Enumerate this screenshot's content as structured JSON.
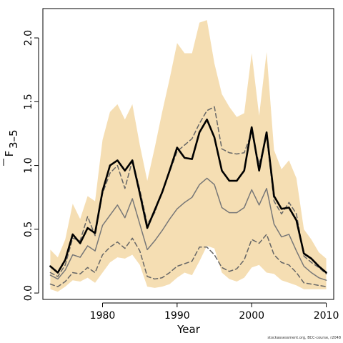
{
  "chart_data": {
    "type": "line",
    "xlabel": "Year",
    "ylabel_main": "F",
    "ylabel_sub": "3–5",
    "xlim": [
      1972,
      2011
    ],
    "ylim": [
      -0.05,
      2.23
    ],
    "xticks": [
      1980,
      1990,
      2000,
      2010
    ],
    "yticks": [
      0.0,
      0.5,
      1.0,
      1.5,
      2.0
    ],
    "ytick_labels": [
      "0.0",
      "0.5",
      "1.0",
      "1.5",
      "2.0"
    ],
    "band_color": "#f5deb3",
    "band": {
      "x": [
        1973,
        1974,
        1975,
        1976,
        1977,
        1978,
        1979,
        1980,
        1981,
        1982,
        1983,
        1984,
        1985,
        1986,
        1987,
        1988,
        1989,
        1990,
        1991,
        1992,
        1993,
        1994,
        1995,
        1996,
        1997,
        1998,
        1999,
        2000,
        2001,
        2002,
        2003,
        2004,
        2005,
        2006,
        2007,
        2008,
        2009,
        2010
      ],
      "upper": [
        0.34,
        0.28,
        0.42,
        0.7,
        0.58,
        0.76,
        0.72,
        1.2,
        1.42,
        1.48,
        1.36,
        1.48,
        1.16,
        0.88,
        1.14,
        1.42,
        1.68,
        1.96,
        1.88,
        1.88,
        2.12,
        2.14,
        1.8,
        1.56,
        1.46,
        1.38,
        1.41,
        1.88,
        1.39,
        1.89,
        1.12,
        0.97,
        1.04,
        0.9,
        0.5,
        0.42,
        0.32,
        0.27
      ],
      "lower": [
        0.03,
        0.01,
        0.05,
        0.1,
        0.09,
        0.12,
        0.08,
        0.16,
        0.24,
        0.28,
        0.27,
        0.3,
        0.22,
        0.05,
        0.04,
        0.05,
        0.07,
        0.12,
        0.16,
        0.14,
        0.25,
        0.37,
        0.35,
        0.16,
        0.11,
        0.09,
        0.12,
        0.2,
        0.22,
        0.16,
        0.15,
        0.1,
        0.08,
        0.06,
        0.03,
        0.03,
        0.03,
        0.03
      ]
    },
    "series": [
      {
        "color": "#000000",
        "style": "solid",
        "width": 2.6,
        "x": [
          1973,
          1974,
          1975,
          1976,
          1977,
          1978,
          1979,
          1980,
          1981,
          1982,
          1983,
          1984,
          1985,
          1986,
          1987,
          1988,
          1989,
          1990,
          1991,
          1992,
          1993,
          1994,
          1995,
          1996,
          1997,
          1998,
          1999,
          2000,
          2001,
          2002,
          2003,
          2004,
          2005,
          2006,
          2007,
          2008,
          2009,
          2010
        ],
        "values": [
          0.21,
          0.16,
          0.26,
          0.46,
          0.39,
          0.51,
          0.47,
          0.8,
          1.0,
          1.04,
          0.96,
          1.04,
          0.78,
          0.51,
          0.65,
          0.79,
          0.96,
          1.14,
          1.06,
          1.05,
          1.26,
          1.36,
          1.22,
          0.96,
          0.88,
          0.88,
          0.96,
          1.3,
          0.96,
          1.26,
          0.76,
          0.66,
          0.67,
          0.57,
          0.31,
          0.27,
          0.21,
          0.16
        ]
      },
      {
        "color": "#666666",
        "style": "dashed",
        "width": 1.5,
        "x": [
          1973,
          1974,
          1975,
          1976,
          1977,
          1978,
          1979,
          1980,
          1981,
          1982,
          1983,
          1984,
          1985,
          1986,
          1987,
          1988,
          1989,
          1990,
          1991,
          1992,
          1993,
          1994,
          1995,
          1996,
          1997,
          1998,
          1999,
          2000,
          2001,
          2002,
          2003,
          2004,
          2005,
          2006,
          2007,
          2008,
          2009,
          2010
        ],
        "values": [
          0.16,
          0.13,
          0.22,
          0.43,
          0.41,
          0.6,
          0.45,
          0.78,
          0.94,
          1.0,
          0.82,
          1.04,
          0.81,
          0.54,
          0.63,
          0.8,
          0.95,
          1.11,
          1.16,
          1.21,
          1.33,
          1.43,
          1.46,
          1.13,
          1.1,
          1.09,
          1.1,
          1.26,
          1.01,
          1.23,
          0.72,
          0.62,
          0.71,
          0.62,
          0.29,
          0.24,
          0.2,
          0.15
        ]
      },
      {
        "color": "#777777",
        "style": "solid",
        "width": 1.5,
        "x": [
          1973,
          1974,
          1975,
          1976,
          1977,
          1978,
          1979,
          1980,
          1981,
          1982,
          1983,
          1984,
          1985,
          1986,
          1987,
          1988,
          1989,
          1990,
          1991,
          1992,
          1993,
          1994,
          1995,
          1996,
          1997,
          1998,
          1999,
          2000,
          2001,
          2002,
          2003,
          2004,
          2005,
          2006,
          2007,
          2008,
          2009,
          2010
        ],
        "values": [
          0.14,
          0.11,
          0.18,
          0.3,
          0.28,
          0.37,
          0.33,
          0.53,
          0.61,
          0.69,
          0.59,
          0.74,
          0.54,
          0.34,
          0.41,
          0.49,
          0.58,
          0.66,
          0.71,
          0.75,
          0.85,
          0.9,
          0.85,
          0.67,
          0.63,
          0.63,
          0.67,
          0.81,
          0.69,
          0.82,
          0.54,
          0.44,
          0.46,
          0.33,
          0.21,
          0.16,
          0.12,
          0.1
        ]
      },
      {
        "color": "#666666",
        "style": "dashed",
        "width": 1.5,
        "x": [
          1973,
          1974,
          1975,
          1976,
          1977,
          1978,
          1979,
          1980,
          1981,
          1982,
          1983,
          1984,
          1985,
          1986,
          1987,
          1988,
          1989,
          1990,
          1991,
          1992,
          1993,
          1994,
          1995,
          1996,
          1997,
          1998,
          1999,
          2000,
          2001,
          2002,
          2003,
          2004,
          2005,
          2006,
          2007,
          2008,
          2009,
          2010
        ],
        "values": [
          0.07,
          0.05,
          0.09,
          0.16,
          0.15,
          0.2,
          0.16,
          0.3,
          0.36,
          0.4,
          0.35,
          0.43,
          0.33,
          0.13,
          0.11,
          0.12,
          0.16,
          0.21,
          0.23,
          0.25,
          0.36,
          0.36,
          0.3,
          0.2,
          0.17,
          0.19,
          0.26,
          0.42,
          0.39,
          0.46,
          0.3,
          0.24,
          0.22,
          0.16,
          0.08,
          0.07,
          0.06,
          0.05
        ]
      }
    ]
  },
  "credit": "stockassessment.org, BCC-course, r2048"
}
